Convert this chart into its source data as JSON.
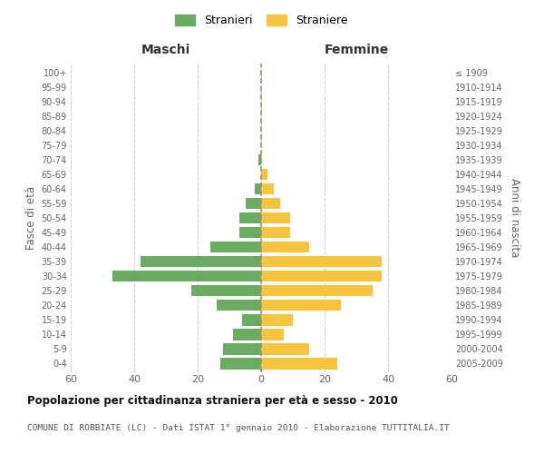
{
  "age_groups_bottom_to_top": [
    "0-4",
    "5-9",
    "10-14",
    "15-19",
    "20-24",
    "25-29",
    "30-34",
    "35-39",
    "40-44",
    "45-49",
    "50-54",
    "55-59",
    "60-64",
    "65-69",
    "70-74",
    "75-79",
    "80-84",
    "85-89",
    "90-94",
    "95-99",
    "100+"
  ],
  "birth_years_bottom_to_top": [
    "2005-2009",
    "2000-2004",
    "1995-1999",
    "1990-1994",
    "1985-1989",
    "1980-1984",
    "1975-1979",
    "1970-1974",
    "1965-1969",
    "1960-1964",
    "1955-1959",
    "1950-1954",
    "1945-1949",
    "1940-1944",
    "1935-1939",
    "1930-1934",
    "1925-1929",
    "1920-1924",
    "1915-1919",
    "1910-1914",
    "≤ 1909"
  ],
  "maschi_bottom_to_top": [
    13,
    12,
    9,
    6,
    14,
    22,
    47,
    38,
    16,
    7,
    7,
    5,
    2,
    0,
    1,
    0,
    0,
    0,
    0,
    0,
    0
  ],
  "femmine_bottom_to_top": [
    24,
    15,
    7,
    10,
    25,
    35,
    38,
    38,
    15,
    9,
    9,
    6,
    4,
    2,
    0,
    0,
    0,
    0,
    0,
    0,
    0
  ],
  "color_maschi": "#6aaa64",
  "color_femmine": "#f5c542",
  "title": "Popolazione per cittadinanza straniera per età e sesso - 2010",
  "subtitle": "COMUNE DI ROBBIATE (LC) - Dati ISTAT 1° gennaio 2010 - Elaborazione TUTTITALIA.IT",
  "xlabel_left": "Maschi",
  "xlabel_right": "Femmine",
  "ylabel_left": "Fasce di età",
  "ylabel_right": "Anni di nascita",
  "legend_maschi": "Stranieri",
  "legend_femmine": "Straniere",
  "xlim": 60,
  "background_color": "#ffffff",
  "grid_color": "#d0d0d0"
}
